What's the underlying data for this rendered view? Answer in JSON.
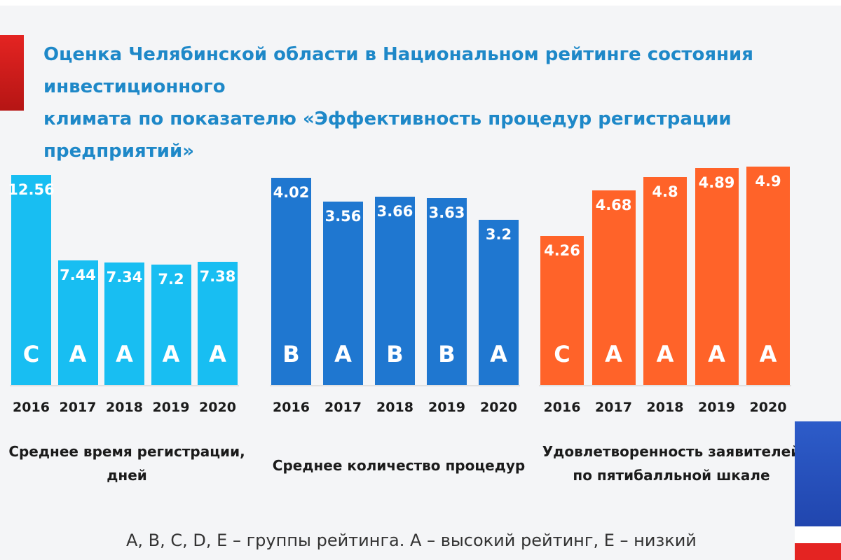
{
  "header": {
    "title_line1": "Оценка Челябинской области в Национальном рейтинге состояния инвестиционного",
    "title_line2": "климата по показателю «Эффективность процедур регистрации предприятий»"
  },
  "footnote": "A, B, C, D, E – группы рейтинга.  A – высокий рейтинг,  E – низкий",
  "chart_data": [
    {
      "type": "bar",
      "caption": [
        "Среднее время регистрации,",
        "дней"
      ],
      "color": "#18bef2",
      "categories": [
        "2016",
        "2017",
        "2018",
        "2019",
        "2020"
      ],
      "values": [
        12.56,
        7.44,
        7.34,
        7.2,
        7.38
      ],
      "value_labels": [
        "12.56",
        "7.44",
        "7.34",
        "7.2",
        "7.38"
      ],
      "grades": [
        "C",
        "A",
        "A",
        "A",
        "A"
      ],
      "ylim": [
        0,
        12.56
      ]
    },
    {
      "type": "bar",
      "caption": [
        "Среднее количество процедур"
      ],
      "color": "#1f77d0",
      "categories": [
        "2016",
        "2017",
        "2018",
        "2019",
        "2020"
      ],
      "values": [
        4.02,
        3.56,
        3.66,
        3.63,
        3.2
      ],
      "value_labels": [
        "4.02",
        "3.56",
        "3.66",
        "3.63",
        "3.2"
      ],
      "grades": [
        "B",
        "A",
        "B",
        "B",
        "A"
      ],
      "ylim": [
        0,
        4.02
      ]
    },
    {
      "type": "bar",
      "caption": [
        "Удовлетворенность заявителей",
        "по пятибалльной шкале"
      ],
      "color": "#ff6329",
      "categories": [
        "2016",
        "2017",
        "2018",
        "2019",
        "2020"
      ],
      "values": [
        4.26,
        4.68,
        4.8,
        4.89,
        4.9
      ],
      "value_labels": [
        "4.26",
        "4.68",
        "4.8",
        "4.89",
        "4.9"
      ],
      "grades": [
        "C",
        "A",
        "A",
        "A",
        "A"
      ],
      "ylim": [
        3.72,
        4.9
      ]
    }
  ]
}
